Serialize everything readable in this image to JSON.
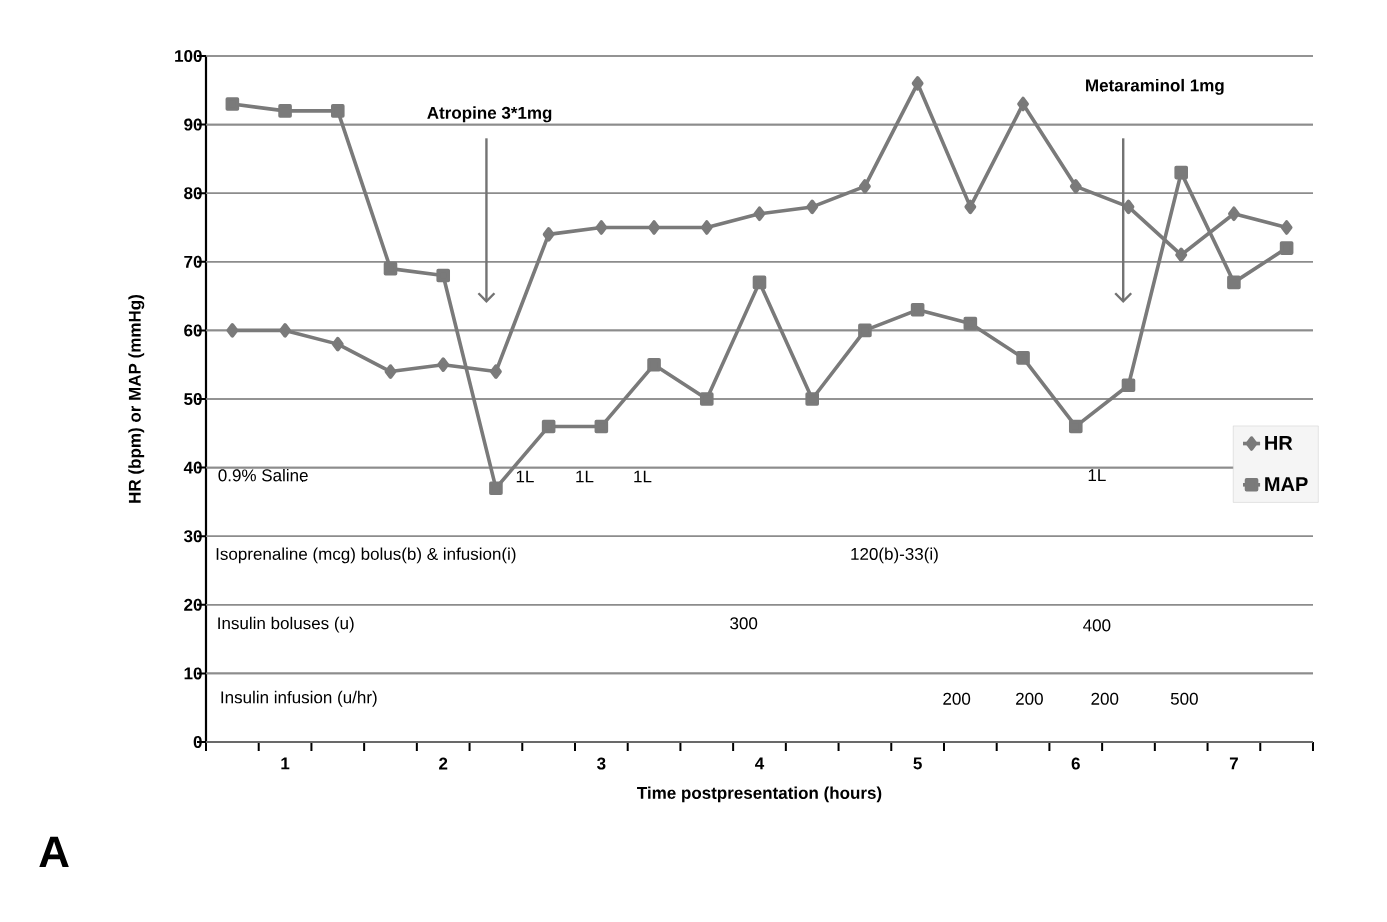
{
  "chart_data": {
    "type": "line",
    "xlabel": "Time postpresentation (hours)",
    "ylabel": "HR (bpm) or MAP (mmHg)",
    "categories": [
      null,
      "1",
      null,
      null,
      "2",
      null,
      null,
      "3",
      null,
      null,
      "4",
      null,
      null,
      "5",
      null,
      null,
      "6",
      null,
      null,
      "7",
      null
    ],
    "series": [
      {
        "name": "HR",
        "color": "#7a7a7a",
        "marker": "diamond",
        "values": [
          60,
          60,
          58,
          54,
          55,
          54,
          74,
          75,
          75,
          75,
          77,
          78,
          81,
          96,
          78,
          93,
          81,
          78,
          71,
          77,
          75
        ]
      },
      {
        "name": "MAP",
        "color": "#7a7a7a",
        "marker": "square",
        "values": [
          93,
          92,
          92,
          69,
          68,
          37,
          46,
          46,
          55,
          50,
          67,
          50,
          60,
          63,
          61,
          56,
          46,
          52,
          83,
          67,
          72
        ]
      }
    ],
    "ylim": [
      0,
      100
    ],
    "yticks": [
      0,
      10,
      20,
      30,
      40,
      50,
      60,
      70,
      80,
      90,
      100
    ],
    "grid": "y",
    "legend": "right",
    "line_style": "solid",
    "annotations": [
      "Atropine 3*1mg",
      "Metaraminol 1mg",
      "0.9% Saline",
      "1L",
      "1L",
      "1L",
      "1L",
      "Isoprenaline (mcg) bolus(b) & infusion(i)",
      "120(b)-33(i)",
      "Insulin boluses (u)",
      "300",
      "400",
      "Insulin infusion (u/hr)",
      "200",
      "200",
      "200",
      "500",
      "A"
    ]
  }
}
